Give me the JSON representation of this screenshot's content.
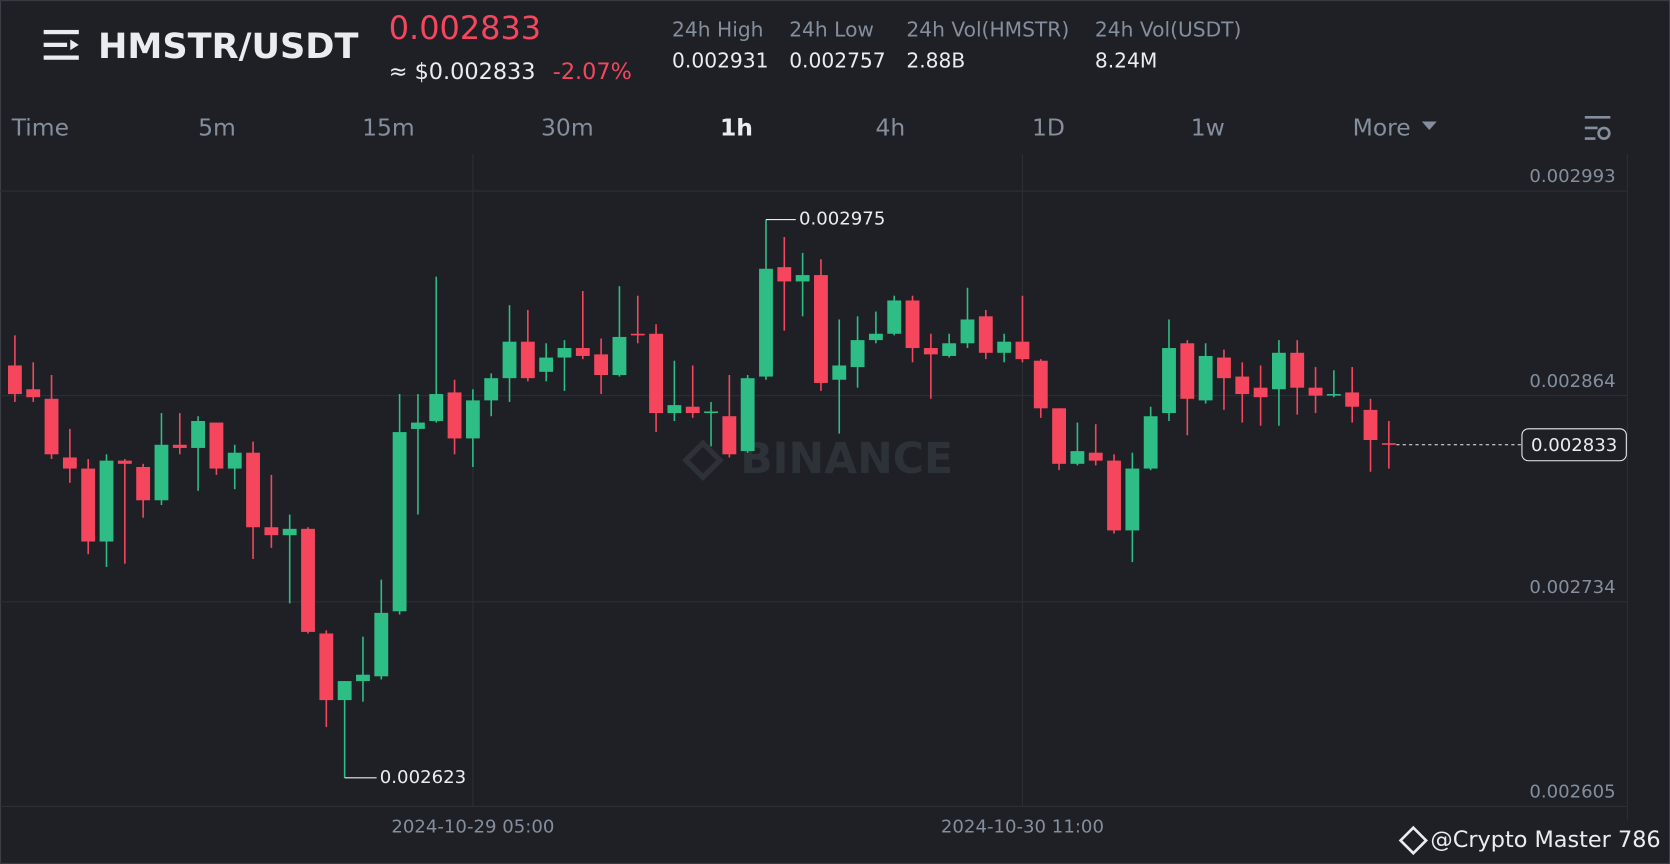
{
  "header": {
    "pair": "HMSTR/USDT",
    "price": "0.002833",
    "price_usd": "≈ $0.002833",
    "change": "-2.07%",
    "stats": [
      {
        "label": "24h High",
        "value": "0.002931"
      },
      {
        "label": "24h Low",
        "value": "0.002757"
      },
      {
        "label": "24h Vol(HMSTR)",
        "value": "2.88B"
      },
      {
        "label": "24h Vol(USDT)",
        "value": "8.24M"
      }
    ]
  },
  "tabs": [
    "Time",
    "5m",
    "15m",
    "30m",
    "1h",
    "4h",
    "1D",
    "1w",
    "More"
  ],
  "chart_data": {
    "type": "candlestick",
    "categories": [
      null,
      null,
      null,
      null,
      null,
      null,
      null,
      null,
      null,
      null,
      null,
      null,
      null,
      null,
      null,
      null,
      null,
      null,
      null,
      null,
      null,
      null,
      null,
      null,
      null,
      "2024-10-29 05:00",
      null,
      null,
      null,
      null,
      null,
      null,
      null,
      null,
      null,
      null,
      null,
      null,
      null,
      null,
      null,
      null,
      null,
      null,
      null,
      null,
      null,
      null,
      null,
      null,
      null,
      null,
      null,
      null,
      null,
      "2024-10-30 11:00",
      null,
      null,
      null,
      null,
      null,
      null,
      null,
      null,
      null,
      null,
      null,
      null,
      null,
      null,
      null,
      null,
      null,
      null,
      null,
      null
    ],
    "open": [
      0.002883,
      0.002868,
      0.002862,
      0.002825,
      0.002818,
      0.002772,
      0.002823,
      0.002819,
      0.002798,
      0.002833,
      0.002831,
      0.002847,
      0.002818,
      0.002828,
      0.002781,
      0.002776,
      0.00278,
      0.002714,
      0.002672,
      0.002684,
      0.002687,
      0.002728,
      0.002843,
      0.002848,
      0.002866,
      0.002837,
      0.002861,
      0.002875,
      0.002898,
      0.002879,
      0.002888,
      0.002894,
      0.00289,
      0.002877,
      0.002903,
      0.002903,
      0.002853,
      0.002857,
      0.002853,
      0.002851,
      0.002829,
      0.002876,
      0.002945,
      0.002936,
      0.00294,
      0.002874,
      0.002882,
      0.002899,
      0.002903,
      0.002924,
      0.002894,
      0.002889,
      0.002897,
      0.002914,
      0.002891,
      0.002898,
      0.002886,
      0.002856,
      0.002821,
      0.002828,
      0.002823,
      0.002779,
      0.002818,
      0.002853,
      0.002897,
      0.002861,
      0.002888,
      0.002876,
      0.002869,
      0.002868,
      0.002891,
      0.002869,
      0.002864,
      0.002866,
      0.002855,
      0.002834
    ],
    "high": [
      0.002902,
      0.002885,
      0.002877,
      0.002843,
      0.002824,
      0.002827,
      0.002824,
      0.002821,
      0.002853,
      0.002853,
      0.002851,
      0.002847,
      0.002833,
      0.002835,
      0.002814,
      0.002789,
      0.002781,
      0.002716,
      0.002684,
      0.002712,
      0.002748,
      0.002865,
      0.002865,
      0.002939,
      0.002874,
      0.002868,
      0.002878,
      0.002921,
      0.002918,
      0.002897,
      0.002899,
      0.00293,
      0.0029,
      0.002933,
      0.002927,
      0.002909,
      0.002886,
      0.002883,
      0.00286,
      0.002877,
      0.002877,
      0.002975,
      0.002964,
      0.002954,
      0.00295,
      0.002912,
      0.002914,
      0.002917,
      0.002927,
      0.002927,
      0.002903,
      0.002903,
      0.002932,
      0.002918,
      0.002903,
      0.002927,
      0.002887,
      0.002856,
      0.002847,
      0.002846,
      0.002827,
      0.002828,
      0.002857,
      0.002912,
      0.002899,
      0.002897,
      0.002893,
      0.002885,
      0.002883,
      0.002899,
      0.002899,
      0.002882,
      0.00288,
      0.002882,
      0.002862,
      0.002848
    ],
    "low": [
      0.00286,
      0.00286,
      0.002824,
      0.002809,
      0.002764,
      0.002756,
      0.002758,
      0.002787,
      0.002795,
      0.002827,
      0.002804,
      0.002814,
      0.002805,
      0.002761,
      0.002768,
      0.002733,
      0.002714,
      0.002655,
      0.002623,
      0.002671,
      0.002685,
      0.002726,
      0.002789,
      0.002847,
      0.002827,
      0.002819,
      0.002851,
      0.00286,
      0.002873,
      0.002873,
      0.002867,
      0.002887,
      0.002865,
      0.002876,
      0.002897,
      0.002841,
      0.002848,
      0.00285,
      0.002832,
      0.002825,
      0.002828,
      0.002874,
      0.002905,
      0.002914,
      0.002867,
      0.00284,
      0.002869,
      0.002897,
      0.002902,
      0.002885,
      0.002862,
      0.002888,
      0.002894,
      0.002887,
      0.002885,
      0.002885,
      0.00285,
      0.002817,
      0.00282,
      0.00282,
      0.002777,
      0.002759,
      0.002817,
      0.002848,
      0.002839,
      0.002859,
      0.002855,
      0.002847,
      0.002845,
      0.002845,
      0.002852,
      0.002853,
      0.002863,
      0.002847,
      0.002816,
      0.002818
    ],
    "close": [
      0.002865,
      0.002863,
      0.002827,
      0.002818,
      0.002772,
      0.002823,
      0.002821,
      0.002798,
      0.002833,
      0.002831,
      0.002848,
      0.002818,
      0.002828,
      0.002781,
      0.002776,
      0.00278,
      0.002715,
      0.002672,
      0.002684,
      0.002688,
      0.002727,
      0.002841,
      0.002847,
      0.002865,
      0.002837,
      0.002861,
      0.002875,
      0.002898,
      0.002875,
      0.002888,
      0.002894,
      0.002889,
      0.002877,
      0.002901,
      0.002902,
      0.002853,
      0.002858,
      0.002853,
      0.002854,
      0.002827,
      0.002875,
      0.002944,
      0.002936,
      0.00294,
      0.002872,
      0.002883,
      0.002899,
      0.002903,
      0.002924,
      0.002894,
      0.00289,
      0.002897,
      0.002912,
      0.002891,
      0.002898,
      0.002887,
      0.002856,
      0.002821,
      0.002829,
      0.002823,
      0.002779,
      0.002818,
      0.002851,
      0.002894,
      0.002862,
      0.002889,
      0.002875,
      0.002865,
      0.002863,
      0.002891,
      0.002869,
      0.002864,
      0.002865,
      0.002857,
      0.002836,
      0.002833
    ],
    "up_color": "#2ebd85",
    "down_color": "#f6465d",
    "ylim": [
      0.002605,
      0.003016
    ],
    "yticks": [
      0.002605,
      0.002734,
      0.002864,
      0.002993
    ],
    "grid": true,
    "high_label": 0.002975,
    "low_label": 0.002623,
    "last_price": 0.002833,
    "watermark": "BINANCE"
  },
  "credit": "@Crypto Master 786"
}
